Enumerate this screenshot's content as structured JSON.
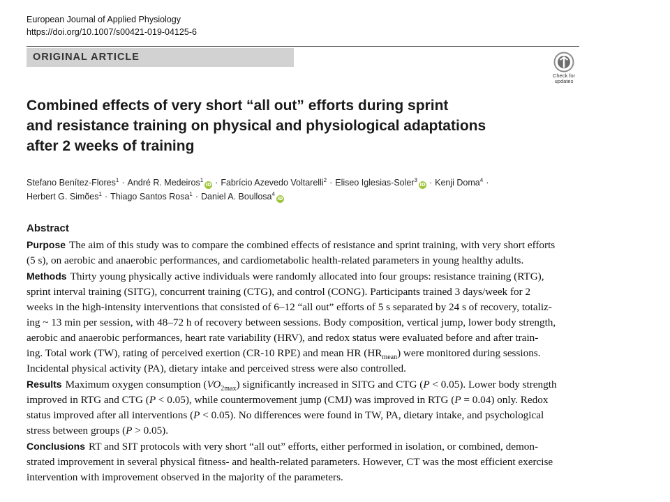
{
  "journal": {
    "name": "European Journal of Applied Physiology",
    "doi": "https://doi.org/10.1007/s00421-019-04125-6"
  },
  "article_type": "ORIGINAL ARTICLE",
  "check_updates": {
    "line1": "Check for",
    "line2": "updates"
  },
  "title_lines": [
    "Combined effects of very short “all out” efforts during sprint",
    "and resistance training on physical and physiological adaptations",
    "after 2 weeks of training"
  ],
  "authors": [
    {
      "name": "Stefano Benítez-Flores",
      "aff": "1",
      "orcid": false
    },
    {
      "name": "André R. Medeiros",
      "aff": "1",
      "orcid": true
    },
    {
      "name": "Fabrício Azevedo Voltarelli",
      "aff": "2",
      "orcid": false
    },
    {
      "name": "Eliseo Iglesias-Soler",
      "aff": "3",
      "orcid": true
    },
    {
      "name": "Kenji Doma",
      "aff": "4",
      "orcid": false
    },
    {
      "name": "Herbert G. Simões",
      "aff": "1",
      "orcid": false
    },
    {
      "name": "Thiago Santos Rosa",
      "aff": "1",
      "orcid": false
    },
    {
      "name": "Daniel A. Boullosa",
      "aff": "4",
      "orcid": true
    }
  ],
  "orcid_glyph": "iD",
  "author_separator": "·",
  "abstract": {
    "heading": "Abstract",
    "purpose": {
      "label": "Purpose",
      "lines": [
        "The aim of this study was to compare the combined effects of resistance and sprint training, with very short efforts",
        "(5 s), on aerobic and anaerobic performances, and cardiometabolic health-related parameters in young healthy adults."
      ]
    },
    "methods": {
      "label": "Methods",
      "line1": "Thirty young physically active individuals were randomly allocated into four groups: resistance training (RTG),",
      "line2": "sprint interval training (SITG), concurrent training (CTG), and control (CONG). Participants trained 3 days/week for 2",
      "line3": "weeks in the high-intensity interventions that consisted of 6–12 “all out” efforts of 5 s separated by 24 s of recovery, totaliz-",
      "line4": "ing ~ 13 min per session, with 48–72 h of recovery between sessions. Body composition, vertical jump, lower body strength,",
      "line5": "aerobic and anaerobic performances, heart rate variability (HRV), and redox status were evaluated before and after train-",
      "line6_pre": "ing. Total work (TW), rating of perceived exertion (CR-10 RPE) and mean HR (HR",
      "line6_sub": "mean",
      "line6_post": ") were monitored during sessions.",
      "line7": "Incidental physical activity (PA), dietary intake and perceived stress were also controlled."
    },
    "results": {
      "label": "Results",
      "line1_pre": "Maximum oxygen consumption (",
      "line1_var": "VO",
      "line1_sub": "2max",
      "line1_mid": ") significantly increased in SITG and CTG (",
      "line1_p": "P",
      "line1_post": " < 0.05). Lower body strength",
      "line2_a": "improved in RTG and CTG (",
      "line2_p1": "P",
      "line2_b": " < 0.05), while countermovement jump (CMJ) was improved in RTG (",
      "line2_p2": "P",
      "line2_c": " = 0.04) only. Redox",
      "line3_a": "status improved after all interventions (",
      "line3_p": "P",
      "line3_b": " < 0.05). No differences were found in TW, PA, dietary intake, and psychological",
      "line4_a": "stress between groups (",
      "line4_p": "P",
      "line4_b": " > 0.05)."
    },
    "conclusions": {
      "label": "Conclusions",
      "lines": [
        "RT and SIT protocols with very short “all out” efforts, either performed in isolation, or combined, demon-",
        "strated improvement in several physical fitness- and health-related parameters. However, CT was the most efficient exercise",
        "intervention with improvement observed in the majority of the parameters."
      ]
    }
  }
}
